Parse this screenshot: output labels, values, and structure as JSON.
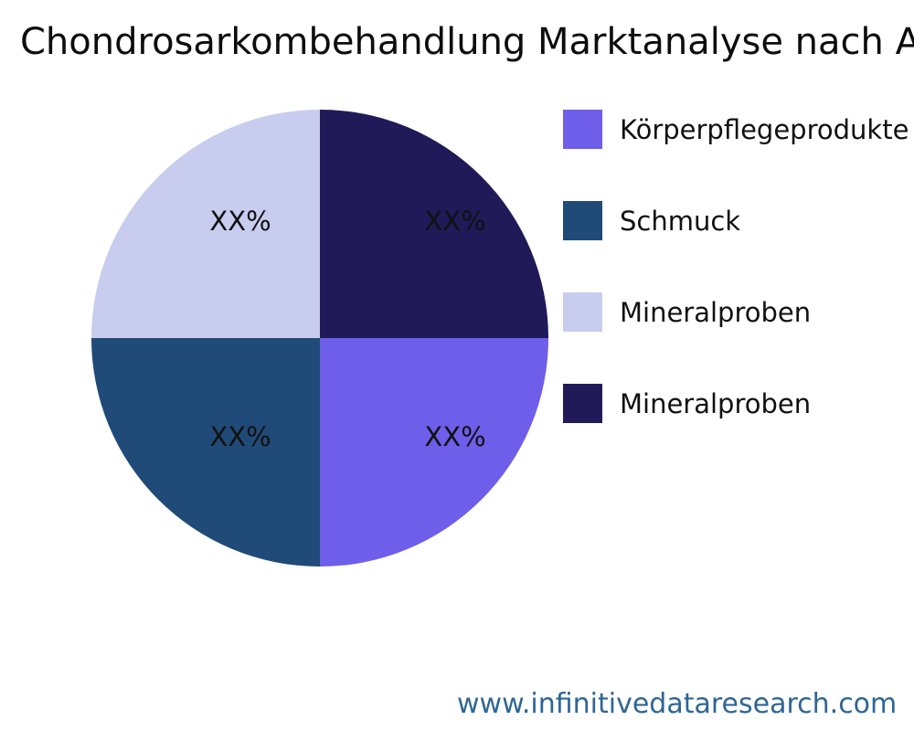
{
  "page": {
    "title": "Chondrosarkombehandlung Marktanalyse nach Anwendung",
    "footer_url": "www.infinitivedataresearch.com",
    "background_color": "#ffffff",
    "footer_color": "#2e6695"
  },
  "chart_data": {
    "type": "pie",
    "title": "Chondrosarkombehandlung Marktanalyse nach Anwendung",
    "legend_position": "right",
    "labels": [
      "Körperpflegeprodukte",
      "Schmuck",
      "Mineralproben",
      "Mineralproben"
    ],
    "values": [
      25,
      25,
      25,
      25
    ],
    "value_labels": [
      "XX%",
      "XX%",
      "XX%",
      "XX%"
    ],
    "colors": [
      "#6e5ee9",
      "#204a78",
      "#c8ccee",
      "#201a59"
    ],
    "slices_clockwise_from_top": [
      {
        "label": "Mineralproben",
        "value": 25,
        "display": "XX%",
        "color": "#201a59"
      },
      {
        "label": "Körperpflegeprodukte",
        "value": 25,
        "display": "XX%",
        "color": "#6e5ee9"
      },
      {
        "label": "Schmuck",
        "value": 25,
        "display": "XX%",
        "color": "#204a78"
      },
      {
        "label": "Mineralproben",
        "value": 25,
        "display": "XX%",
        "color": "#c8ccee"
      }
    ],
    "legend": [
      {
        "label": "Körperpflegeprodukte",
        "color": "#6e5ee9"
      },
      {
        "label": "Schmuck",
        "color": "#204a78"
      },
      {
        "label": "Mineralproben",
        "color": "#c8ccee"
      },
      {
        "label": "Mineralproben",
        "color": "#201a59"
      }
    ]
  }
}
